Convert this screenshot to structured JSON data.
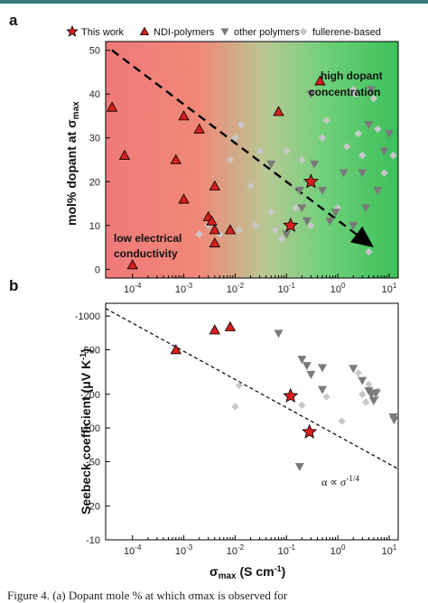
{
  "chart_data": [
    {
      "panel": "a",
      "type": "scatter",
      "ylabel": "mol% dopant at σmax",
      "xlabel": "",
      "xscale": "log",
      "xlim": [
        3e-05,
        15
      ],
      "ylim": [
        -2,
        52
      ],
      "xticks": [
        "10-4",
        "10-3",
        "10-2",
        "10-1",
        "100",
        "101"
      ],
      "yticks": [
        0,
        10,
        20,
        30,
        40,
        50
      ],
      "background": "gradient red (low conductivity) to green (high conductivity)",
      "legend": [
        "This work",
        "NDI-polymers",
        "other polymers",
        "fullerene-based"
      ],
      "legend_position": "top",
      "annotations": [
        "high dopant",
        "concentration",
        "low electrical",
        "conductivity"
      ],
      "arrow": {
        "from": [
          4e-05,
          50
        ],
        "to": [
          5,
          5
        ]
      },
      "series": [
        {
          "name": "This work",
          "points": [
            [
              0.12,
              10
            ],
            [
              0.3,
              20
            ]
          ]
        },
        {
          "name": "NDI-polymers",
          "points": [
            [
              4e-05,
              37
            ],
            [
              7e-05,
              26
            ],
            [
              0.0001,
              1
            ],
            [
              0.0007,
              25
            ],
            [
              0.001,
              16
            ],
            [
              0.001,
              35
            ],
            [
              0.002,
              32
            ],
            [
              0.003,
              12
            ],
            [
              0.0035,
              11
            ],
            [
              0.004,
              19
            ],
            [
              0.004,
              9
            ],
            [
              0.004,
              6
            ],
            [
              0.008,
              9
            ],
            [
              0.07,
              36
            ],
            [
              0.45,
              43
            ]
          ]
        },
        {
          "name": "other polymers",
          "points": [
            [
              0.05,
              24
            ],
            [
              0.1,
              8
            ],
            [
              0.18,
              18
            ],
            [
              0.2,
              14
            ],
            [
              0.25,
              11
            ],
            [
              0.3,
              40
            ],
            [
              0.35,
              24
            ],
            [
              0.5,
              18
            ],
            [
              0.7,
              11
            ],
            [
              0.9,
              13
            ],
            [
              1.3,
              22
            ],
            [
              2,
              10
            ],
            [
              3,
              22
            ],
            [
              3.5,
              14
            ],
            [
              4.5,
              41
            ],
            [
              4,
              33
            ],
            [
              6,
              18
            ],
            [
              8,
              27
            ],
            [
              10,
              31
            ]
          ]
        },
        {
          "name": "fullerene-based",
          "points": [
            [
              0.002,
              8
            ],
            [
              0.003,
              10
            ],
            [
              0.005,
              8
            ],
            [
              0.008,
              25
            ],
            [
              0.01,
              30
            ],
            [
              0.012,
              9
            ],
            [
              0.013,
              33
            ],
            [
              0.02,
              19
            ],
            [
              0.025,
              10
            ],
            [
              0.03,
              27
            ],
            [
              0.05,
              13
            ],
            [
              0.06,
              9
            ],
            [
              0.08,
              7
            ],
            [
              0.1,
              27
            ],
            [
              0.15,
              14
            ],
            [
              0.2,
              25
            ],
            [
              0.3,
              10
            ],
            [
              0.5,
              30
            ],
            [
              0.6,
              34
            ],
            [
              1,
              14
            ],
            [
              1.5,
              28
            ],
            [
              2,
              41
            ],
            [
              2.2,
              40
            ],
            [
              2.5,
              31
            ],
            [
              3,
              26
            ],
            [
              4,
              4
            ],
            [
              5,
              39
            ],
            [
              6,
              32
            ],
            [
              8,
              22
            ],
            [
              12,
              26
            ]
          ]
        }
      ]
    },
    {
      "panel": "b",
      "type": "scatter",
      "ylabel": "Seebeck coefficient (μV K-1)",
      "xlabel": "σmax (S cm-1)",
      "xscale": "log",
      "yscale": "log",
      "xlim": [
        3e-05,
        15
      ],
      "ylim": [
        -1300,
        -10
      ],
      "xticks": [
        "10-4",
        "10-3",
        "10-2",
        "10-1",
        "100",
        "101"
      ],
      "yticks": [
        "-1000",
        "-500",
        "-200",
        "-100",
        "-50",
        "-20",
        "-10"
      ],
      "fit_line": {
        "label": "α ∝ σ-1/4"
      },
      "series": [
        {
          "name": "This work",
          "points": [
            [
              0.12,
              -193
            ],
            [
              0.28,
              -92
            ]
          ]
        },
        {
          "name": "NDI-polymers",
          "points": [
            [
              0.0007,
              -500
            ],
            [
              0.004,
              -750
            ],
            [
              0.008,
              -800
            ]
          ]
        },
        {
          "name": "other polymers",
          "points": [
            [
              0.07,
              -700
            ],
            [
              0.18,
              -45
            ],
            [
              0.2,
              -410
            ],
            [
              0.25,
              -360
            ],
            [
              0.3,
              -300
            ],
            [
              0.5,
              -220
            ],
            [
              0.5,
              -345
            ],
            [
              2,
              -340
            ],
            [
              3,
              -265
            ],
            [
              4,
              -215
            ],
            [
              4.5,
              -200
            ],
            [
              5,
              -175
            ],
            [
              5.5,
              -205
            ],
            [
              12,
              -125
            ],
            [
              12.5,
              -118
            ]
          ]
        },
        {
          "name": "fullerene-based",
          "points": [
            [
              0.01,
              -155
            ],
            [
              0.012,
              -240
            ],
            [
              0.2,
              -160
            ],
            [
              0.6,
              -190
            ],
            [
              2.5,
              -310
            ],
            [
              3,
              -200
            ],
            [
              3.5,
              -170
            ],
            [
              4,
              -245
            ],
            [
              5.5,
              -190
            ],
            [
              6,
              -215
            ],
            [
              1.2,
              -115
            ]
          ]
        }
      ]
    }
  ],
  "labels": {
    "panel_a": "a",
    "panel_b": "b",
    "caption": "Figure 4. (a) Dopant mole % at which σmax is observed for"
  }
}
